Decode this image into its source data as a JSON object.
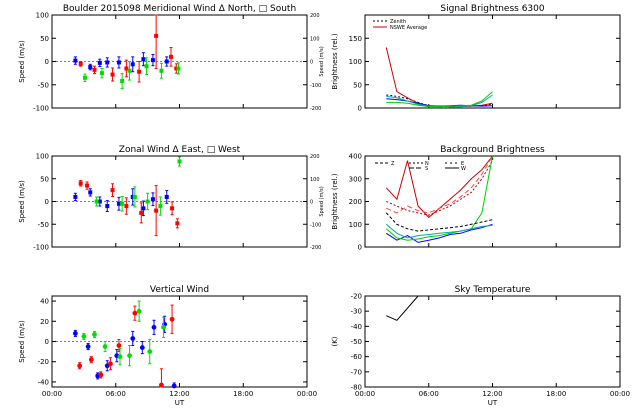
{
  "panels": {
    "meridional": {
      "title": "Boulder  2015098     Meridional Wind   Δ North, □ South",
      "ylabel": "Speed (m/s)",
      "ylabel_right": "Speed (m/s)",
      "yticks": [
        "100",
        "50",
        "0",
        "-50",
        "-100"
      ],
      "yticks_right": [
        "200",
        "100",
        "0",
        "-100",
        "-200"
      ]
    },
    "zonal": {
      "title": "Zonal Wind      Δ East, □ West",
      "ylabel": "Speed (m/s)",
      "ylabel_right": "Speed (m/s)",
      "yticks": [
        "100",
        "50",
        "0",
        "-50",
        "-100"
      ],
      "yticks_right": [
        "200",
        "100",
        "0",
        "-100",
        "-200"
      ]
    },
    "vertical": {
      "title": "Vertical Wind",
      "ylabel": "Speed (m/s)",
      "yticks": [
        "40",
        "20",
        "0",
        "-20",
        "-40"
      ],
      "xticks": [
        "00:00",
        "06:00",
        "12:00",
        "18:00",
        "00:00"
      ],
      "xlabel": "UT"
    },
    "signal": {
      "title": "Signal Brightness      6300",
      "ylabel": "Brightness (rel.)",
      "yticks": [
        "150",
        "100",
        "50",
        "0"
      ],
      "legend": [
        "Zenith",
        "NSWE Average"
      ]
    },
    "background": {
      "title": "Background Brightness",
      "ylabel": "Brightness (rel.)",
      "yticks": [
        "400",
        "300",
        "200",
        "100",
        "0"
      ],
      "legend": [
        "Z",
        "N",
        "S",
        "E",
        "W"
      ]
    },
    "sky": {
      "title": "Sky Temperature",
      "ylabel": "(K)",
      "yticks": [
        "-20",
        "-30",
        "-40",
        "-50",
        "-60",
        "-70",
        "-80"
      ],
      "xticks": [
        "00:00",
        "06:00",
        "12:00",
        "18:00",
        "00:00"
      ],
      "xlabel": "UT"
    }
  },
  "chart_data": [
    {
      "type": "scatter",
      "name": "meridional",
      "xlim": [
        0,
        24
      ],
      "ylim": [
        -100,
        100
      ],
      "ylim_right": [
        -200,
        200
      ],
      "series": [
        {
          "color": "#0000ff",
          "points": [
            [
              2.2,
              2,
              8
            ],
            [
              3.6,
              -12,
              6
            ],
            [
              4.5,
              -3,
              8
            ],
            [
              5.2,
              -2,
              10
            ],
            [
              6.3,
              -2,
              12
            ],
            [
              7.6,
              -6,
              16
            ],
            [
              8.6,
              5,
              14
            ],
            [
              9.5,
              3,
              12
            ],
            [
              10.8,
              0,
              10
            ]
          ]
        },
        {
          "color": "#ff0000",
          "points": [
            [
              2.7,
              -5,
              5
            ],
            [
              4.0,
              -18,
              8
            ],
            [
              5.7,
              -28,
              14
            ],
            [
              7.0,
              -15,
              18
            ],
            [
              8.2,
              -22,
              22
            ],
            [
              9.8,
              55,
              70
            ],
            [
              11.2,
              10,
              20
            ],
            [
              11.7,
              -15,
              10
            ]
          ]
        },
        {
          "color": "#00dd00",
          "points": [
            [
              3.1,
              -35,
              8
            ],
            [
              4.7,
              -25,
              10
            ],
            [
              6.6,
              -42,
              16
            ],
            [
              7.3,
              -20,
              20
            ],
            [
              8.9,
              -10,
              18
            ],
            [
              10.3,
              -20,
              16
            ],
            [
              11.9,
              -15,
              12
            ]
          ]
        }
      ]
    },
    {
      "type": "scatter",
      "name": "zonal",
      "xlim": [
        0,
        24
      ],
      "ylim": [
        -100,
        100
      ],
      "ylim_right": [
        -200,
        200
      ],
      "series": [
        {
          "color": "#0000ff",
          "points": [
            [
              2.2,
              10,
              8
            ],
            [
              3.6,
              20,
              8
            ],
            [
              4.5,
              0,
              10
            ],
            [
              5.2,
              -10,
              12
            ],
            [
              6.3,
              -5,
              14
            ],
            [
              7.6,
              10,
              18
            ],
            [
              8.6,
              -15,
              16
            ],
            [
              9.5,
              5,
              14
            ],
            [
              10.8,
              10,
              14
            ]
          ]
        },
        {
          "color": "#ff0000",
          "points": [
            [
              2.7,
              40,
              6
            ],
            [
              3.3,
              35,
              8
            ],
            [
              5.7,
              25,
              14
            ],
            [
              7.0,
              -10,
              18
            ],
            [
              8.4,
              -25,
              22
            ],
            [
              9.8,
              -20,
              55
            ],
            [
              11.3,
              -15,
              14
            ],
            [
              11.8,
              -48,
              10
            ]
          ]
        },
        {
          "color": "#00dd00",
          "points": [
            [
              4.2,
              0,
              10
            ],
            [
              6.6,
              -5,
              16
            ],
            [
              7.8,
              10,
              22
            ],
            [
              9.0,
              0,
              18
            ],
            [
              10.2,
              -10,
              20
            ],
            [
              12.0,
              88,
              10
            ]
          ]
        }
      ]
    },
    {
      "type": "scatter",
      "name": "vertical",
      "xlim": [
        0,
        24
      ],
      "ylim": [
        -45,
        45
      ],
      "series": [
        {
          "color": "#0000ff",
          "points": [
            [
              2.2,
              8,
              3
            ],
            [
              3.4,
              -5,
              3
            ],
            [
              4.3,
              -34,
              3
            ],
            [
              5.2,
              -24,
              5
            ],
            [
              6.1,
              -14,
              6
            ],
            [
              7.6,
              3,
              7
            ],
            [
              8.5,
              -6,
              6
            ],
            [
              9.6,
              14,
              7
            ],
            [
              10.6,
              17,
              8
            ],
            [
              11.5,
              -44,
              3
            ]
          ]
        },
        {
          "color": "#ff0000",
          "points": [
            [
              2.6,
              -24,
              3
            ],
            [
              3.7,
              -18,
              3
            ],
            [
              4.6,
              -33,
              3
            ],
            [
              5.5,
              -22,
              6
            ],
            [
              6.3,
              -4,
              6
            ],
            [
              7.8,
              28,
              7
            ],
            [
              10.3,
              -43,
              16
            ],
            [
              11.3,
              22,
              14
            ]
          ]
        },
        {
          "color": "#00dd00",
          "points": [
            [
              3.0,
              5,
              3
            ],
            [
              4.0,
              7,
              3
            ],
            [
              5.0,
              -5,
              5
            ],
            [
              6.4,
              -15,
              8
            ],
            [
              7.3,
              -14,
              10
            ],
            [
              8.2,
              30,
              10
            ],
            [
              9.2,
              -10,
              12
            ],
            [
              10.5,
              14,
              10
            ]
          ]
        }
      ]
    },
    {
      "type": "line",
      "name": "signal",
      "xlim": [
        0,
        24
      ],
      "ylim": [
        0,
        200
      ],
      "series": [
        {
          "name": "Zenith",
          "color": "#000000",
          "dash": "2,2",
          "points": [
            [
              2,
              28
            ],
            [
              3,
              25
            ],
            [
              4,
              20
            ],
            [
              5,
              12
            ],
            [
              6,
              5
            ],
            [
              7,
              3
            ],
            [
              8,
              3
            ],
            [
              9,
              3
            ],
            [
              10,
              4
            ],
            [
              11,
              5
            ],
            [
              12,
              8
            ]
          ]
        },
        {
          "name": "NSWE Average",
          "color": "#cc0000",
          "points": [
            [
              2,
              130
            ],
            [
              3,
              35
            ],
            [
              4,
              22
            ],
            [
              5,
              10
            ],
            [
              6,
              5
            ],
            [
              7,
              4
            ],
            [
              8,
              3
            ],
            [
              9,
              3
            ],
            [
              10,
              4
            ],
            [
              11,
              6
            ],
            [
              12,
              10
            ]
          ]
        },
        {
          "color": "#0000ff",
          "points": [
            [
              2,
              20
            ],
            [
              3,
              18
            ],
            [
              4,
              15
            ],
            [
              5,
              10
            ],
            [
              6,
              5
            ],
            [
              7,
              4
            ],
            [
              8,
              5
            ],
            [
              9,
              6
            ],
            [
              10,
              5
            ],
            [
              11,
              4
            ],
            [
              12,
              5
            ]
          ]
        },
        {
          "color": "#00aaaa",
          "points": [
            [
              2,
              25
            ],
            [
              3,
              22
            ],
            [
              4,
              15
            ],
            [
              5,
              8
            ],
            [
              6,
              4
            ],
            [
              7,
              3
            ],
            [
              8,
              4
            ],
            [
              9,
              3
            ],
            [
              10,
              5
            ],
            [
              11,
              12
            ],
            [
              12,
              28
            ]
          ]
        },
        {
          "color": "#00cc00",
          "points": [
            [
              2,
              12
            ],
            [
              3,
              12
            ],
            [
              4,
              10
            ],
            [
              5,
              6
            ],
            [
              6,
              3
            ],
            [
              7,
              3
            ],
            [
              8,
              4
            ],
            [
              9,
              5
            ],
            [
              10,
              6
            ],
            [
              11,
              15
            ],
            [
              12,
              35
            ]
          ]
        }
      ]
    },
    {
      "type": "line",
      "name": "background",
      "xlim": [
        0,
        24
      ],
      "ylim": [
        0,
        400
      ],
      "series": [
        {
          "color": "#cc0000",
          "points": [
            [
              2,
              260
            ],
            [
              3,
              210
            ],
            [
              4,
              380
            ],
            [
              5,
              180
            ],
            [
              6,
              130
            ],
            [
              7,
              170
            ],
            [
              8,
              210
            ],
            [
              9,
              250
            ],
            [
              10,
              300
            ],
            [
              11,
              340
            ],
            [
              12,
              400
            ]
          ]
        },
        {
          "color": "#ff4444",
          "dash": "5,3",
          "points": [
            [
              2,
              170
            ],
            [
              3,
              150
            ],
            [
              4,
              180
            ],
            [
              5,
              160
            ],
            [
              6,
              150
            ],
            [
              7,
              170
            ],
            [
              8,
              190
            ],
            [
              9,
              220
            ],
            [
              10,
              260
            ],
            [
              11,
              320
            ],
            [
              12,
              400
            ]
          ]
        },
        {
          "color": "#aa0000",
          "dash": "2,2",
          "points": [
            [
              2,
              200
            ],
            [
              3,
              180
            ],
            [
              4,
              160
            ],
            [
              5,
              150
            ],
            [
              6,
              140
            ],
            [
              7,
              160
            ],
            [
              8,
              180
            ],
            [
              9,
              210
            ],
            [
              10,
              240
            ],
            [
              11,
              300
            ],
            [
              12,
              380
            ]
          ]
        },
        {
          "color": "#0000ff",
          "points": [
            [
              2,
              60
            ],
            [
              3,
              30
            ],
            [
              4,
              50
            ],
            [
              5,
              20
            ],
            [
              6,
              30
            ],
            [
              7,
              40
            ],
            [
              8,
              55
            ],
            [
              9,
              60
            ],
            [
              10,
              75
            ],
            [
              11,
              85
            ],
            [
              12,
              100
            ]
          ]
        },
        {
          "color": "#00cc00",
          "points": [
            [
              2,
              80
            ],
            [
              3,
              40
            ],
            [
              4,
              30
            ],
            [
              5,
              35
            ],
            [
              6,
              45
            ],
            [
              7,
              50
            ],
            [
              8,
              60
            ],
            [
              9,
              70
            ],
            [
              10,
              80
            ],
            [
              11,
              150
            ],
            [
              12,
              400
            ]
          ]
        },
        {
          "color": "#00aaaa",
          "points": [
            [
              2,
              100
            ],
            [
              3,
              60
            ],
            [
              4,
              40
            ],
            [
              5,
              50
            ],
            [
              6,
              55
            ],
            [
              7,
              60
            ],
            [
              8,
              65
            ],
            [
              9,
              70
            ],
            [
              10,
              80
            ],
            [
              11,
              90
            ],
            [
              12,
              95
            ]
          ]
        },
        {
          "color": "#000000",
          "dash": "3,2",
          "points": [
            [
              2,
              150
            ],
            [
              3,
              100
            ],
            [
              4,
              80
            ],
            [
              5,
              70
            ],
            [
              6,
              75
            ],
            [
              7,
              80
            ],
            [
              8,
              85
            ],
            [
              9,
              90
            ],
            [
              10,
              100
            ],
            [
              11,
              110
            ],
            [
              12,
              120
            ]
          ]
        }
      ]
    },
    {
      "type": "line",
      "name": "sky",
      "xlim": [
        0,
        24
      ],
      "ylim": [
        -80,
        -20
      ],
      "series": [
        {
          "color": "#000000",
          "points": [
            [
              2,
              -33
            ],
            [
              3,
              -36
            ],
            [
              5,
              -20
            ]
          ]
        }
      ]
    }
  ]
}
